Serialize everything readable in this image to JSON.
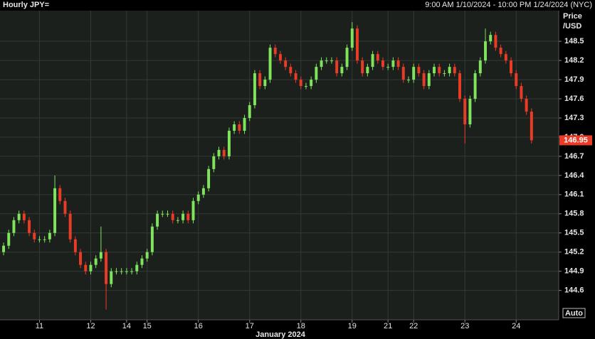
{
  "chart_data": {
    "type": "candlestick",
    "title": "Hourly JPY=",
    "subtitle": "9:00 AM 1/10/2024 - 10:00 PM 1/24/2024 (NYC)",
    "y_label_lines": [
      "Price",
      "/USD"
    ],
    "x_label": "January 2024",
    "auto_button": "Auto",
    "up_color": "#7fe35c",
    "down_color": "#ea3b26",
    "grid": true,
    "ylim": [
      144.14,
      148.98
    ],
    "yticks": [
      144.6,
      144.9,
      145.2,
      145.5,
      145.8,
      146.1,
      146.4,
      146.7,
      {
        "value": 147,
        "label": "147.0"
      },
      147.3,
      147.6,
      147.9,
      148.2,
      148.5
    ],
    "xlim": [
      -0.7,
      108.3
    ],
    "xticks": [
      {
        "value": 7,
        "label": "11"
      },
      {
        "value": 17,
        "label": "12"
      },
      {
        "value": 24,
        "label": "14"
      },
      {
        "value": 28,
        "label": "15"
      },
      {
        "value": 38,
        "label": "16"
      },
      {
        "value": 48,
        "label": "17"
      },
      {
        "value": 58,
        "label": "18"
      },
      {
        "value": 68,
        "label": "19"
      },
      {
        "value": 75,
        "label": "21"
      },
      {
        "value": 80,
        "label": "22"
      },
      {
        "value": 90,
        "label": "23"
      },
      {
        "value": 100,
        "label": "24"
      }
    ],
    "open": [
      145.2,
      145.3,
      145.5,
      145.7,
      145.8,
      145.7,
      145.5,
      145.4,
      145.4,
      145.4,
      145.5,
      146.2,
      146.0,
      145.8,
      145.4,
      145.2,
      145.0,
      144.9,
      145.0,
      145.1,
      145.2,
      144.7,
      144.9,
      144.9,
      144.9,
      144.9,
      144.9,
      145.0,
      145.1,
      145.2,
      145.6,
      145.8,
      145.8,
      145.8,
      145.7,
      145.7,
      145.8,
      145.7,
      146.0,
      146.1,
      146.2,
      146.5,
      146.7,
      146.8,
      146.7,
      147.1,
      147.2,
      147.1,
      147.3,
      147.5,
      148.0,
      147.8,
      147.9,
      148.4,
      148.3,
      148.2,
      148.1,
      148.0,
      147.9,
      147.8,
      147.8,
      147.9,
      148.1,
      148.2,
      148.2,
      148.2,
      148.0,
      148.1,
      148.4,
      148.7,
      148.2,
      148.0,
      148.1,
      148.3,
      148.2,
      148.1,
      148.1,
      148.2,
      148.1,
      147.9,
      147.9,
      148.1,
      148.0,
      147.8,
      148.0,
      148.1,
      148.0,
      148.0,
      148.1,
      148.0,
      147.6,
      147.2,
      147.6,
      148.0,
      148.2,
      148.5,
      148.6,
      148.4,
      148.3,
      148.2,
      148.0,
      147.8,
      147.6,
      147.4
    ],
    "high": [
      145.35,
      145.55,
      145.75,
      145.85,
      145.85,
      145.75,
      145.55,
      145.45,
      145.45,
      145.55,
      146.4,
      146.25,
      146.05,
      145.85,
      145.45,
      145.25,
      145.05,
      145.05,
      145.15,
      145.6,
      145.25,
      144.95,
      144.95,
      144.95,
      144.95,
      144.95,
      145.05,
      145.15,
      145.25,
      145.65,
      145.85,
      145.85,
      145.85,
      145.85,
      145.75,
      145.85,
      145.85,
      146.05,
      146.15,
      146.25,
      146.55,
      146.75,
      146.85,
      146.85,
      147.15,
      147.25,
      147.25,
      147.35,
      147.55,
      148.05,
      148.05,
      147.95,
      148.45,
      148.45,
      148.35,
      148.25,
      148.15,
      148.05,
      147.95,
      147.85,
      147.95,
      148.15,
      148.25,
      148.25,
      148.25,
      148.25,
      148.15,
      148.45,
      148.8,
      148.75,
      148.25,
      148.15,
      148.35,
      148.35,
      148.25,
      148.15,
      148.25,
      148.25,
      148.15,
      147.95,
      148.15,
      148.15,
      148.05,
      148.05,
      148.15,
      148.15,
      148.05,
      148.15,
      148.15,
      148.05,
      147.65,
      147.65,
      148.05,
      148.25,
      148.7,
      148.65,
      148.65,
      148.45,
      148.35,
      148.25,
      148.05,
      147.85,
      147.65,
      147.45
    ],
    "low": [
      145.15,
      145.25,
      145.45,
      145.65,
      145.65,
      145.45,
      145.35,
      145.35,
      145.35,
      145.35,
      145.45,
      145.95,
      145.75,
      145.35,
      145.15,
      144.95,
      144.85,
      144.85,
      144.95,
      145.05,
      144.3,
      144.65,
      144.85,
      144.85,
      144.85,
      144.85,
      144.85,
      144.95,
      145.05,
      145.15,
      145.55,
      145.75,
      145.75,
      145.65,
      145.65,
      145.65,
      145.65,
      145.65,
      145.95,
      146.05,
      146.15,
      146.45,
      146.65,
      146.65,
      146.65,
      147.05,
      147.05,
      147.05,
      147.25,
      147.45,
      147.75,
      147.75,
      147.85,
      148.25,
      148.15,
      148.05,
      147.95,
      147.85,
      147.75,
      147.75,
      147.75,
      147.85,
      148.05,
      148.15,
      148.15,
      147.95,
      147.95,
      148.05,
      148.35,
      148.15,
      147.95,
      147.95,
      148.05,
      148.15,
      148.05,
      148.05,
      148.05,
      148.05,
      147.85,
      147.85,
      147.85,
      147.95,
      147.75,
      147.75,
      147.95,
      147.95,
      147.95,
      147.95,
      147.95,
      147.55,
      146.9,
      147.15,
      147.55,
      147.95,
      148.15,
      148.45,
      148.35,
      148.25,
      148.15,
      147.95,
      147.75,
      147.55,
      147.35,
      146.9
    ],
    "close": [
      145.3,
      145.5,
      145.7,
      145.8,
      145.7,
      145.5,
      145.4,
      145.4,
      145.4,
      145.5,
      146.2,
      146.0,
      145.8,
      145.4,
      145.2,
      145.0,
      144.9,
      145.0,
      145.1,
      145.2,
      144.7,
      144.9,
      144.9,
      144.9,
      144.9,
      144.9,
      145.0,
      145.1,
      145.2,
      145.6,
      145.8,
      145.8,
      145.8,
      145.7,
      145.7,
      145.8,
      145.7,
      146.0,
      146.1,
      146.2,
      146.5,
      146.7,
      146.8,
      146.7,
      147.1,
      147.2,
      147.1,
      147.3,
      147.5,
      148.0,
      147.8,
      147.9,
      148.4,
      148.3,
      148.2,
      148.1,
      148.0,
      147.9,
      147.8,
      147.8,
      147.9,
      148.1,
      148.2,
      148.2,
      148.2,
      148.0,
      148.1,
      148.4,
      148.7,
      148.2,
      148.0,
      148.1,
      148.3,
      148.2,
      148.1,
      148.1,
      148.2,
      148.1,
      147.9,
      147.9,
      148.1,
      148.0,
      147.8,
      148.0,
      148.1,
      148.0,
      148.0,
      148.1,
      148.0,
      147.6,
      147.2,
      147.6,
      148.0,
      148.2,
      148.5,
      148.6,
      148.4,
      148.3,
      148.2,
      148.0,
      147.8,
      147.6,
      147.4,
      146.95
    ]
  }
}
